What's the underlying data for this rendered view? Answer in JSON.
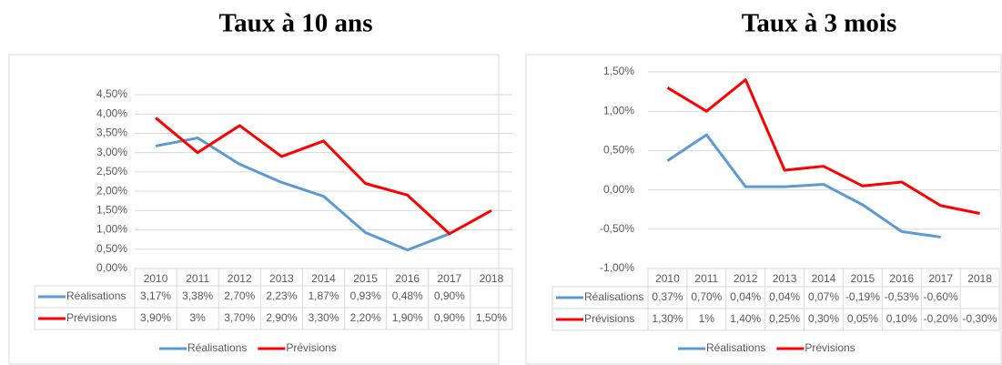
{
  "chart_data": [
    {
      "type": "line",
      "title": "Taux à 10 ans",
      "categories": [
        "2010",
        "2011",
        "2012",
        "2013",
        "2014",
        "2015",
        "2016",
        "2017",
        "2018"
      ],
      "series": [
        {
          "name": "Réalisations",
          "color": "#5b9bd5",
          "values": [
            3.17,
            3.38,
            2.7,
            2.23,
            1.87,
            0.93,
            0.48,
            0.9,
            null
          ],
          "value_labels": [
            "3,17%",
            "3,38%",
            "2,70%",
            "2,23%",
            "1,87%",
            "0,93%",
            "0,48%",
            "0,90%",
            null
          ]
        },
        {
          "name": "Prévisions",
          "color": "#ff0000",
          "values": [
            3.9,
            3,
            3.7,
            2.9,
            3.3,
            2.2,
            1.9,
            0.9,
            1.5
          ],
          "value_labels": [
            "3,90%",
            "3%",
            "3,70%",
            "2,90%",
            "3,30%",
            "2,20%",
            "1,90%",
            "0,90%",
            "1,50%"
          ]
        }
      ],
      "ylim": [
        0,
        4.5
      ],
      "yticks": [
        {
          "value": 0,
          "label": "0,00%"
        },
        {
          "value": 0.5,
          "label": "0,50%"
        },
        {
          "value": 1,
          "label": "1,00%"
        },
        {
          "value": 1.5,
          "label": "1,50%"
        },
        {
          "value": 2,
          "label": "2,00%"
        },
        {
          "value": 2.5,
          "label": "2,50%"
        },
        {
          "value": 3,
          "label": "3,00%"
        },
        {
          "value": 3.5,
          "label": "3,50%"
        },
        {
          "value": 4,
          "label": "4,00%"
        },
        {
          "value": 4.5,
          "label": "4,50%"
        }
      ],
      "grid": true,
      "legend": "bottom"
    },
    {
      "type": "line",
      "title": "Taux à 3 mois",
      "categories": [
        "2010",
        "2011",
        "2012",
        "2013",
        "2014",
        "2015",
        "2016",
        "2017",
        "2018"
      ],
      "series": [
        {
          "name": "Réalisations",
          "color": "#5b9bd5",
          "values": [
            0.37,
            0.7,
            0.04,
            0.04,
            0.07,
            -0.19,
            -0.53,
            -0.6,
            null
          ],
          "value_labels": [
            "0,37%",
            "0,70%",
            "0,04%",
            "0,04%",
            "0,07%",
            "-0,19%",
            "-0,53%",
            "-0,60%",
            null
          ]
        },
        {
          "name": "Prévisions",
          "color": "#ff0000",
          "values": [
            1.3,
            1,
            1.4,
            0.25,
            0.3,
            0.05,
            0.1,
            -0.2,
            -0.3
          ],
          "value_labels": [
            "1,30%",
            "1%",
            "1,40%",
            "0,25%",
            "0,30%",
            "0,05%",
            "0,10%",
            "-0,20%",
            "-0,30%"
          ]
        }
      ],
      "ylim": [
        -1,
        1.5
      ],
      "yticks": [
        {
          "value": -1,
          "label": "-1,00%"
        },
        {
          "value": -0.5,
          "label": "-0,50%"
        },
        {
          "value": 0,
          "label": "0,00%"
        },
        {
          "value": 0.5,
          "label": "0,50%"
        },
        {
          "value": 1,
          "label": "1,00%"
        },
        {
          "value": 1.5,
          "label": "1,50%"
        }
      ],
      "grid": true,
      "legend": "bottom"
    }
  ]
}
